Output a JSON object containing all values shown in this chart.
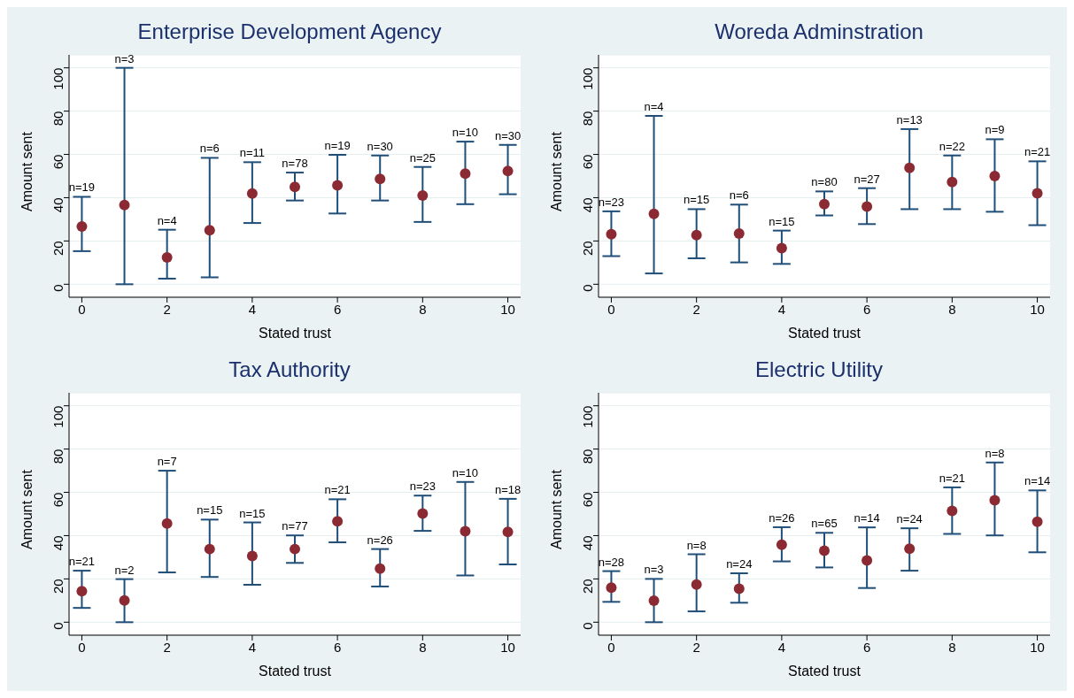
{
  "chart_data": [
    {
      "type": "scatter",
      "title": "Enterprise Development Agency",
      "xlabel": "Stated trust",
      "ylabel": "Amount sent",
      "color": "#8b2a33",
      "marker": "circle",
      "grid": "y",
      "xlim": [
        -0.3,
        10.3
      ],
      "xticks": [
        0,
        2,
        4,
        6,
        8,
        10
      ],
      "ylim": [
        -6,
        106
      ],
      "yticks": [
        0,
        20,
        40,
        60,
        80,
        100
      ],
      "x": [
        0,
        1,
        2,
        3,
        4,
        5,
        6,
        7,
        8,
        9,
        10
      ],
      "values": [
        26.7,
        36.6,
        12.4,
        25,
        41.9,
        45,
        45.7,
        48.7,
        41,
        51.1,
        52.3
      ],
      "errors": [
        [
          15.3,
          40.4
        ],
        [
          0,
          100
        ],
        [
          2.6,
          25.2
        ],
        [
          3.2,
          58.4
        ],
        [
          28.3,
          56.4
        ],
        [
          38.7,
          51.6
        ],
        [
          32.7,
          59.8
        ],
        [
          38.7,
          59.5
        ],
        [
          28.8,
          54.2
        ],
        [
          37,
          65.9
        ],
        [
          41.6,
          64.4
        ]
      ],
      "annotations": [
        {
          "text": "n=19",
          "x": 0,
          "y": 40.4
        },
        {
          "text": "n=3",
          "x": 1,
          "y": 100
        },
        {
          "text": "n=4",
          "x": 2,
          "y": 25.2
        },
        {
          "text": "n=6",
          "x": 3,
          "y": 58.4
        },
        {
          "text": "n=11",
          "x": 4,
          "y": 56.4
        },
        {
          "text": "n=78",
          "x": 5,
          "y": 51.6
        },
        {
          "text": "n=19",
          "x": 6,
          "y": 59.8
        },
        {
          "text": "n=30",
          "x": 7,
          "y": 59.5
        },
        {
          "text": "n=25",
          "x": 8,
          "y": 54.2
        },
        {
          "text": "n=10",
          "x": 9,
          "y": 65.9
        },
        {
          "text": "n=30",
          "x": 10,
          "y": 64.4
        }
      ]
    },
    {
      "type": "scatter",
      "title": "Woreda Adminstration",
      "xlabel": "Stated trust",
      "ylabel": "Amount sent",
      "color": "#8b2a33",
      "marker": "circle",
      "grid": "y",
      "xlim": [
        -0.3,
        10.3
      ],
      "xticks": [
        0,
        2,
        4,
        6,
        8,
        10
      ],
      "ylim": [
        -6,
        106
      ],
      "yticks": [
        0,
        20,
        40,
        60,
        80,
        100
      ],
      "x": [
        0,
        1,
        2,
        3,
        4,
        5,
        6,
        7,
        8,
        9,
        10
      ],
      "values": [
        23.1,
        32.5,
        22.7,
        23.4,
        16.7,
        37,
        35.9,
        53.8,
        47.2,
        50,
        42
      ],
      "errors": [
        [
          13,
          33.7
        ],
        [
          5,
          77.8
        ],
        [
          12,
          34.7
        ],
        [
          10.1,
          36.8
        ],
        [
          9.4,
          24.8
        ],
        [
          31.8,
          42.9
        ],
        [
          27.8,
          44.4
        ],
        [
          34.7,
          71.7
        ],
        [
          34.7,
          59.5
        ],
        [
          33.5,
          67
        ],
        [
          27.3,
          56.8
        ]
      ],
      "annotations": [
        {
          "text": "n=23",
          "x": 0,
          "y": 33.7
        },
        {
          "text": "n=4",
          "x": 1,
          "y": 77.8
        },
        {
          "text": "n=15",
          "x": 2,
          "y": 34.7
        },
        {
          "text": "n=6",
          "x": 3,
          "y": 36.8
        },
        {
          "text": "n=15",
          "x": 4,
          "y": 24.8
        },
        {
          "text": "n=80",
          "x": 5,
          "y": 42.9
        },
        {
          "text": "n=27",
          "x": 6,
          "y": 44.4
        },
        {
          "text": "n=13",
          "x": 7,
          "y": 71.7
        },
        {
          "text": "n=22",
          "x": 8,
          "y": 59.5
        },
        {
          "text": "n=9",
          "x": 9,
          "y": 67
        },
        {
          "text": "n=21",
          "x": 10,
          "y": 56.8
        }
      ]
    },
    {
      "type": "scatter",
      "title": "Tax Authority",
      "xlabel": "Stated trust",
      "ylabel": "Amount sent",
      "color": "#8b2a33",
      "marker": "circle",
      "grid": "y",
      "xlim": [
        -0.3,
        10.3
      ],
      "xticks": [
        0,
        2,
        4,
        6,
        8,
        10
      ],
      "ylim": [
        -6,
        106
      ],
      "yticks": [
        0,
        20,
        40,
        60,
        80,
        100
      ],
      "x": [
        0,
        1,
        2,
        3,
        4,
        5,
        6,
        7,
        8,
        9,
        10
      ],
      "values": [
        14.3,
        10,
        45.6,
        33.8,
        30.6,
        33.8,
        46.6,
        24.8,
        50.2,
        42,
        41.7
      ],
      "errors": [
        [
          6.6,
          23.8
        ],
        [
          0,
          19.9
        ],
        [
          23,
          70
        ],
        [
          20.9,
          47.4
        ],
        [
          17.3,
          46.1
        ],
        [
          27.4,
          40.1
        ],
        [
          36.9,
          56.8
        ],
        [
          16.5,
          33.8
        ],
        [
          42.2,
          58.5
        ],
        [
          21.6,
          64.8
        ],
        [
          26.7,
          57
        ]
      ],
      "annotations": [
        {
          "text": "n=21",
          "x": 0,
          "y": 23.8
        },
        {
          "text": "n=2",
          "x": 1,
          "y": 19.9
        },
        {
          "text": "n=7",
          "x": 2,
          "y": 70
        },
        {
          "text": "n=15",
          "x": 3,
          "y": 47.4
        },
        {
          "text": "n=15",
          "x": 4,
          "y": 46.1
        },
        {
          "text": "n=77",
          "x": 5,
          "y": 40.1
        },
        {
          "text": "n=21",
          "x": 6,
          "y": 56.8
        },
        {
          "text": "n=26",
          "x": 7,
          "y": 33.8
        },
        {
          "text": "n=23",
          "x": 8,
          "y": 58.5
        },
        {
          "text": "n=10",
          "x": 9,
          "y": 64.8
        },
        {
          "text": "n=18",
          "x": 10,
          "y": 57
        }
      ]
    },
    {
      "type": "scatter",
      "title": "Electric Utility",
      "xlabel": "Stated trust",
      "ylabel": "Amount sent",
      "color": "#8b2a33",
      "marker": "circle",
      "grid": "y",
      "xlim": [
        -0.3,
        10.3
      ],
      "xticks": [
        0,
        2,
        4,
        6,
        8,
        10
      ],
      "ylim": [
        -6,
        106
      ],
      "yticks": [
        0,
        20,
        40,
        60,
        80,
        100
      ],
      "x": [
        0,
        1,
        2,
        3,
        4,
        5,
        6,
        7,
        8,
        9,
        10
      ],
      "values": [
        16,
        9.9,
        17.4,
        15.5,
        35.8,
        33,
        28.5,
        34,
        51.4,
        56.3,
        46.4
      ],
      "errors": [
        [
          9.4,
          23.6
        ],
        [
          0,
          20
        ],
        [
          5,
          31.4
        ],
        [
          9,
          22.6
        ],
        [
          28.1,
          43.9
        ],
        [
          25.3,
          41.3
        ],
        [
          15.8,
          43.8
        ],
        [
          23.8,
          43.4
        ],
        [
          40.8,
          62.3
        ],
        [
          40.1,
          73.8
        ],
        [
          32.3,
          60.9
        ]
      ],
      "annotations": [
        {
          "text": "n=28",
          "x": 0,
          "y": 23.6
        },
        {
          "text": "n=3",
          "x": 1,
          "y": 20
        },
        {
          "text": "n=8",
          "x": 2,
          "y": 31.4
        },
        {
          "text": "n=24",
          "x": 3,
          "y": 22.6
        },
        {
          "text": "n=26",
          "x": 4,
          "y": 43.9
        },
        {
          "text": "n=65",
          "x": 5,
          "y": 41.3
        },
        {
          "text": "n=14",
          "x": 6,
          "y": 43.8
        },
        {
          "text": "n=24",
          "x": 7,
          "y": 43.4
        },
        {
          "text": "n=21",
          "x": 8,
          "y": 62.3
        },
        {
          "text": "n=8",
          "x": 9,
          "y": 73.8
        },
        {
          "text": "n=14",
          "x": 10,
          "y": 60.9
        }
      ]
    }
  ]
}
